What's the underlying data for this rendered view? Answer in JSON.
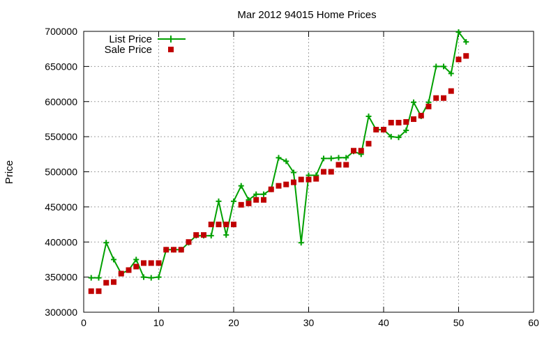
{
  "chart_data": {
    "type": "line",
    "title": "Mar 2012 94015 Home Prices",
    "xlabel": "",
    "ylabel": "Price",
    "xlim": [
      0,
      60
    ],
    "ylim": [
      300000,
      700000
    ],
    "x_ticks": [
      0,
      10,
      20,
      30,
      40,
      50,
      60
    ],
    "y_ticks": [
      300000,
      350000,
      400000,
      450000,
      500000,
      550000,
      600000,
      650000,
      700000
    ],
    "grid": true,
    "legend_position": "top-left",
    "series": [
      {
        "name": "List Price",
        "style": "line-points",
        "marker": "plus",
        "color": "#00a000",
        "x": [
          1,
          2,
          3,
          4,
          5,
          6,
          7,
          8,
          9,
          10,
          11,
          12,
          13,
          14,
          15,
          16,
          17,
          18,
          19,
          20,
          21,
          22,
          23,
          24,
          25,
          26,
          27,
          28,
          29,
          30,
          31,
          32,
          33,
          34,
          35,
          36,
          37,
          38,
          39,
          40,
          41,
          42,
          43,
          44,
          45,
          46,
          47,
          48,
          49,
          50,
          51
        ],
        "y": [
          349000,
          349000,
          399000,
          375000,
          355000,
          360000,
          375000,
          350000,
          349000,
          350000,
          389000,
          389000,
          389000,
          399000,
          409000,
          409000,
          409000,
          458000,
          410000,
          458000,
          480000,
          460000,
          468000,
          468000,
          475000,
          520000,
          515000,
          499000,
          399000,
          495000,
          495000,
          519000,
          519000,
          520000,
          520000,
          529000,
          525000,
          579000,
          560000,
          560000,
          550000,
          549000,
          559000,
          599000,
          579000,
          599000,
          650000,
          650000,
          640000,
          699000,
          685000
        ]
      },
      {
        "name": "Sale Price",
        "style": "points",
        "marker": "square",
        "color": "#c00000",
        "x": [
          1,
          2,
          3,
          4,
          5,
          6,
          7,
          8,
          9,
          10,
          11,
          12,
          13,
          14,
          15,
          16,
          17,
          18,
          19,
          20,
          21,
          22,
          23,
          24,
          25,
          26,
          27,
          28,
          29,
          30,
          31,
          32,
          33,
          34,
          35,
          36,
          37,
          38,
          39,
          40,
          41,
          42,
          43,
          44,
          45,
          46,
          47,
          48,
          49,
          50,
          51
        ],
        "y": [
          330000,
          330000,
          342000,
          343000,
          355000,
          360000,
          365000,
          370000,
          370000,
          370000,
          389000,
          389000,
          389000,
          400000,
          410000,
          410000,
          425000,
          425000,
          425000,
          425000,
          453000,
          455000,
          460000,
          460000,
          475000,
          480000,
          482000,
          485000,
          489000,
          489000,
          490000,
          500000,
          500000,
          510000,
          510000,
          530000,
          530000,
          540000,
          560000,
          560000,
          570000,
          570000,
          571000,
          575000,
          580000,
          593000,
          605000,
          605000,
          615000,
          660000,
          665000
        ]
      }
    ]
  }
}
